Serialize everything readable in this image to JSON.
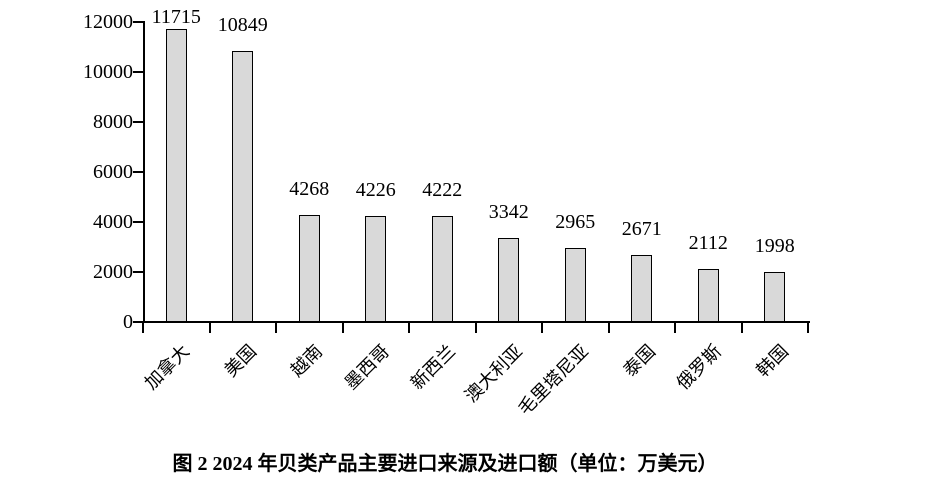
{
  "chart_data": {
    "type": "bar",
    "title": "图 2 2024 年贝类产品主要进口来源及进口额（单位：万美元）",
    "categories": [
      "加拿大",
      "美国",
      "越南",
      "墨西哥",
      "新西兰",
      "澳大利亚",
      "毛里塔尼亚",
      "泰国",
      "俄罗斯",
      "韩国"
    ],
    "values": [
      11715,
      10849,
      4268,
      4226,
      4222,
      3342,
      2965,
      2671,
      2112,
      1998
    ],
    "xlabel": "",
    "ylabel": "",
    "ylim": [
      0,
      12000
    ],
    "yticks": [
      0,
      2000,
      4000,
      6000,
      8000,
      10000,
      12000
    ],
    "grid": false,
    "legend": "none",
    "data_labels": "outside-end",
    "x_label_rotation_deg": 45,
    "colors": {
      "bar_fill": "#d9d9d9",
      "bar_border": "#000000",
      "axis": "#000000",
      "text": "#000000",
      "background": "#ffffff"
    }
  }
}
